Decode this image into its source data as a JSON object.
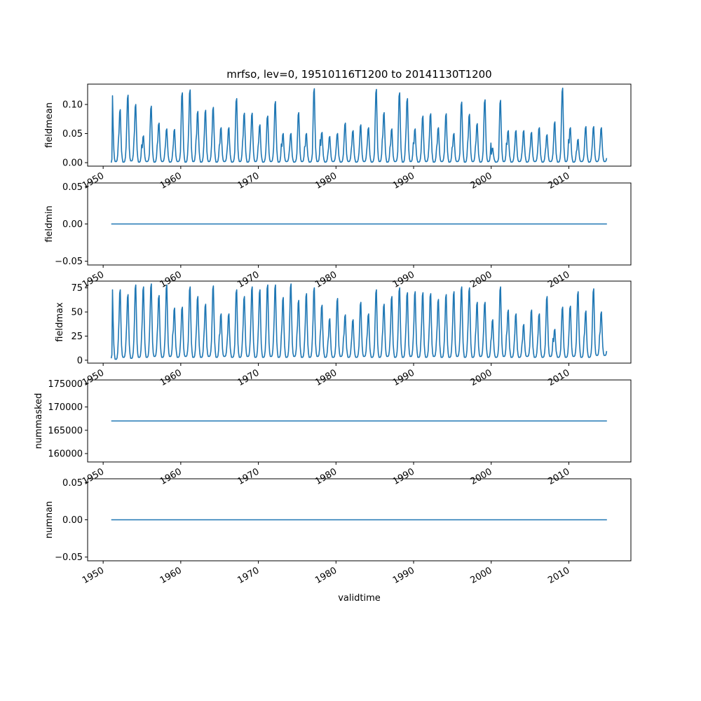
{
  "chart_data": {
    "title": "mrfso, lev=0, 19510116T1200 to 20141130T1200",
    "xlabel": "validtime",
    "line_color": "#1f77b4",
    "x_range": [
      "1948-01-01",
      "2017-12-31"
    ],
    "x_ticks": [
      "1950",
      "1960",
      "1970",
      "1980",
      "1990",
      "2000",
      "2010"
    ],
    "x_start": "1951-01-16",
    "x_end": "2014-11-30",
    "panels": [
      {
        "type": "line",
        "ylabel": "fieldmean",
        "ylim": [
          -0.006,
          0.135
        ],
        "y_ticks": [
          "0.00",
          "0.05",
          "0.10"
        ],
        "series_kind": "seasonal",
        "start_year": 1951,
        "values": [
          0.115,
          0.091,
          0.116,
          0.1,
          0.046,
          0.097,
          0.068,
          0.058,
          0.057,
          0.12,
          0.125,
          0.088,
          0.09,
          0.095,
          0.06,
          0.06,
          0.11,
          0.085,
          0.085,
          0.065,
          0.08,
          0.105,
          0.05,
          0.05,
          0.086,
          0.05,
          0.127,
          0.052,
          0.045,
          0.05,
          0.068,
          0.055,
          0.065,
          0.06,
          0.126,
          0.086,
          0.058,
          0.12,
          0.11,
          0.058,
          0.08,
          0.084,
          0.06,
          0.084,
          0.05,
          0.104,
          0.083,
          0.067,
          0.108,
          0.025,
          0.107,
          0.055,
          0.055,
          0.055,
          0.052,
          0.06,
          0.048,
          0.07,
          0.128,
          0.06,
          0.04,
          0.062,
          0.062,
          0.06
        ],
        "mins": [
          0.0,
          0.002,
          0.001,
          0.003,
          0.001,
          0.002,
          0.001,
          0.002,
          0.001,
          0.002,
          0.001,
          0.002,
          0.001,
          0.002,
          0.001,
          0.002,
          0.001,
          0.002,
          0.001,
          0.002,
          0.001,
          0.002,
          0.001,
          0.002,
          0.001,
          0.002,
          0.001,
          0.002,
          0.001,
          0.002,
          0.001,
          0.002,
          0.001,
          0.002,
          0.001,
          0.002,
          0.001,
          0.002,
          0.001,
          0.002,
          0.001,
          0.002,
          0.001,
          0.002,
          0.001,
          0.002,
          0.001,
          0.002,
          0.001,
          0.002,
          0.001,
          0.002,
          0.001,
          0.002,
          0.001,
          0.002,
          0.001,
          0.002,
          0.001,
          0.002,
          0.001,
          0.002,
          0.001,
          0.002
        ]
      },
      {
        "type": "line",
        "ylabel": "fieldmin",
        "ylim": [
          -0.055,
          0.055
        ],
        "y_ticks": [
          "−0.05",
          "0.00",
          "0.05"
        ],
        "series_kind": "constant",
        "constant": 0.0
      },
      {
        "type": "line",
        "ylabel": "fieldmax",
        "ylim": [
          -3,
          82
        ],
        "y_ticks": [
          "0",
          "25",
          "50",
          "75"
        ],
        "series_kind": "seasonal",
        "start_year": 1951,
        "values": [
          73,
          73,
          68,
          78,
          76,
          79,
          67,
          78,
          54,
          55,
          76,
          66,
          58,
          77,
          48,
          48,
          73,
          66,
          76,
          73,
          78,
          78,
          65,
          79,
          62,
          69,
          75,
          57,
          43,
          64,
          47,
          42,
          60,
          48,
          73,
          58,
          66,
          75,
          70,
          71,
          70,
          69,
          63,
          68,
          71,
          76,
          75,
          60,
          60,
          42,
          76,
          52,
          48,
          37,
          52,
          48,
          66,
          32,
          55,
          56,
          71,
          51,
          74,
          50
        ],
        "mins": [
          2,
          1,
          3,
          2,
          3,
          3,
          4,
          3,
          4,
          3,
          4,
          3,
          3,
          4,
          3,
          4,
          3,
          3,
          4,
          3,
          3,
          4,
          3,
          3,
          4,
          3,
          3,
          4,
          3,
          3,
          4,
          3,
          3,
          4,
          3,
          3,
          4,
          3,
          3,
          4,
          3,
          3,
          4,
          3,
          3,
          4,
          3,
          3,
          4,
          3,
          3,
          4,
          3,
          3,
          4,
          3,
          3,
          4,
          3,
          3,
          4,
          3,
          3,
          5
        ]
      },
      {
        "type": "line",
        "ylabel": "nummasked",
        "ylim": [
          158200,
          175800
        ],
        "y_ticks": [
          "160000",
          "165000",
          "170000",
          "175000"
        ],
        "series_kind": "constant",
        "constant": 167000
      },
      {
        "type": "line",
        "ylabel": "numnan",
        "ylim": [
          -0.055,
          0.055
        ],
        "y_ticks": [
          "−0.05",
          "0.00",
          "0.05"
        ],
        "series_kind": "constant",
        "constant": 0.0
      }
    ]
  }
}
